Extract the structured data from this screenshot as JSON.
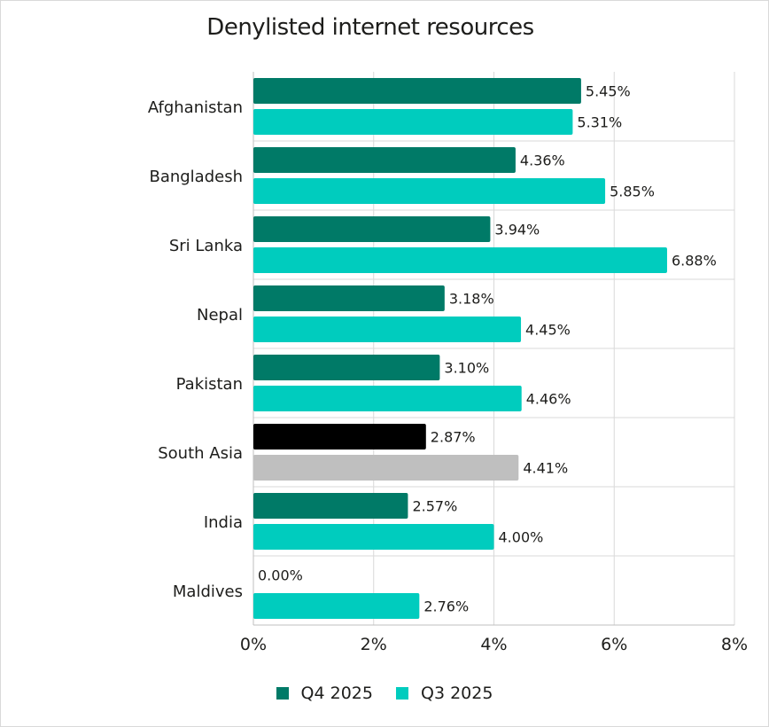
{
  "chart_data": {
    "type": "bar",
    "orientation": "horizontal",
    "title": "Denylisted internet resources",
    "categories": [
      "Afghanistan",
      "Bangladesh",
      "Sri Lanka",
      "Nepal",
      "Pakistan",
      "South Asia",
      "India",
      "Maldives"
    ],
    "series": [
      {
        "name": "Q4 2025",
        "color": "#007a67",
        "values": [
          5.45,
          4.36,
          3.94,
          3.18,
          3.1,
          2.87,
          2.57,
          0.0
        ],
        "labels": [
          "5.45%",
          "4.36%",
          "3.94%",
          "3.18%",
          "3.10%",
          "2.87%",
          "2.57%",
          "0.00%"
        ]
      },
      {
        "name": "Q3 2025",
        "color": "#00ccbe",
        "values": [
          5.31,
          5.85,
          6.88,
          4.45,
          4.46,
          4.41,
          4.0,
          2.76
        ],
        "labels": [
          "5.31%",
          "5.85%",
          "6.88%",
          "4.45%",
          "4.46%",
          "4.41%",
          "4.00%",
          "2.76%"
        ]
      }
    ],
    "highlight": {
      "category": "South Asia",
      "colors": [
        "#000000",
        "#bfbfbf"
      ]
    },
    "xlim": [
      0,
      8
    ],
    "xticks": [
      0,
      2,
      4,
      6,
      8
    ],
    "xtick_labels": [
      "0%",
      "2%",
      "4%",
      "6%",
      "8%"
    ],
    "grid": true,
    "legend_position": "bottom"
  }
}
